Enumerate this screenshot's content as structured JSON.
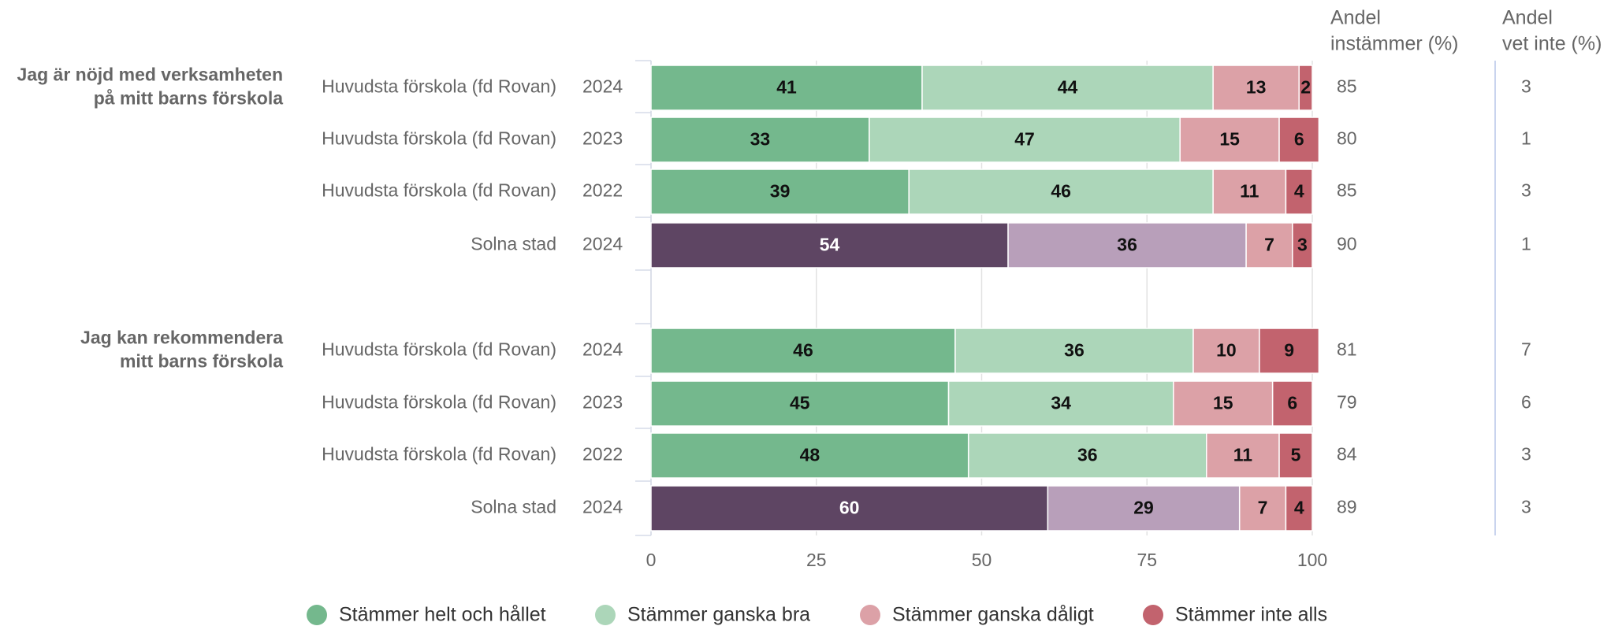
{
  "chart_data": {
    "type": "bar",
    "orientation": "horizontal",
    "stacked": true,
    "xlim": [
      0,
      100
    ],
    "x_ticks": [
      "0",
      "25",
      "50",
      "75",
      "100"
    ],
    "grid": true,
    "legend_position": "bottom",
    "column_headers": {
      "instammer": [
        "Andel",
        "instämmer (%)"
      ],
      "vet_inte": [
        "Andel",
        "vet inte (%)"
      ]
    },
    "series": [
      {
        "name": "Stämmer helt och hållet",
        "color": "#74b88d"
      },
      {
        "name": "Stämmer ganska bra",
        "color": "#acd6b9"
      },
      {
        "name": "Stämmer ganska dåligt",
        "color": "#dca1a7"
      },
      {
        "name": "Stämmer inte alls",
        "color": "#c2636e"
      }
    ],
    "comparison_colors": [
      "#5e4563",
      "#b89fba",
      "#dca1a7",
      "#c2636e"
    ],
    "groups": [
      {
        "question_lines": [
          "Jag är nöjd med verksamheten",
          "på mitt barns förskola"
        ],
        "rows": [
          {
            "unit": "Huvudsta förskola (fd Rovan)",
            "year": "2024",
            "values": [
              41,
              44,
              13,
              2
            ],
            "instammer": "85",
            "vet_inte": "3",
            "comparison": false
          },
          {
            "unit": "Huvudsta förskola (fd Rovan)",
            "year": "2023",
            "values": [
              33,
              47,
              15,
              6
            ],
            "instammer": "80",
            "vet_inte": "1",
            "comparison": false
          },
          {
            "unit": "Huvudsta förskola (fd Rovan)",
            "year": "2022",
            "values": [
              39,
              46,
              11,
              4
            ],
            "instammer": "85",
            "vet_inte": "3",
            "comparison": false
          },
          {
            "unit": "Solna stad",
            "year": "2024",
            "values": [
              54,
              36,
              7,
              3
            ],
            "instammer": "90",
            "vet_inte": "1",
            "comparison": true
          }
        ]
      },
      {
        "question_lines": [
          "Jag kan rekommendera",
          "mitt barns förskola"
        ],
        "rows": [
          {
            "unit": "Huvudsta förskola (fd Rovan)",
            "year": "2024",
            "values": [
              46,
              36,
              10,
              9
            ],
            "instammer": "81",
            "vet_inte": "7",
            "comparison": false
          },
          {
            "unit": "Huvudsta förskola (fd Rovan)",
            "year": "2023",
            "values": [
              45,
              34,
              15,
              6
            ],
            "instammer": "79",
            "vet_inte": "6",
            "comparison": false
          },
          {
            "unit": "Huvudsta förskola (fd Rovan)",
            "year": "2022",
            "values": [
              48,
              36,
              11,
              5
            ],
            "instammer": "84",
            "vet_inte": "3",
            "comparison": false
          },
          {
            "unit": "Solna stad",
            "year": "2024",
            "values": [
              60,
              29,
              7,
              4
            ],
            "instammer": "89",
            "vet_inte": "3",
            "comparison": true
          }
        ]
      }
    ]
  }
}
